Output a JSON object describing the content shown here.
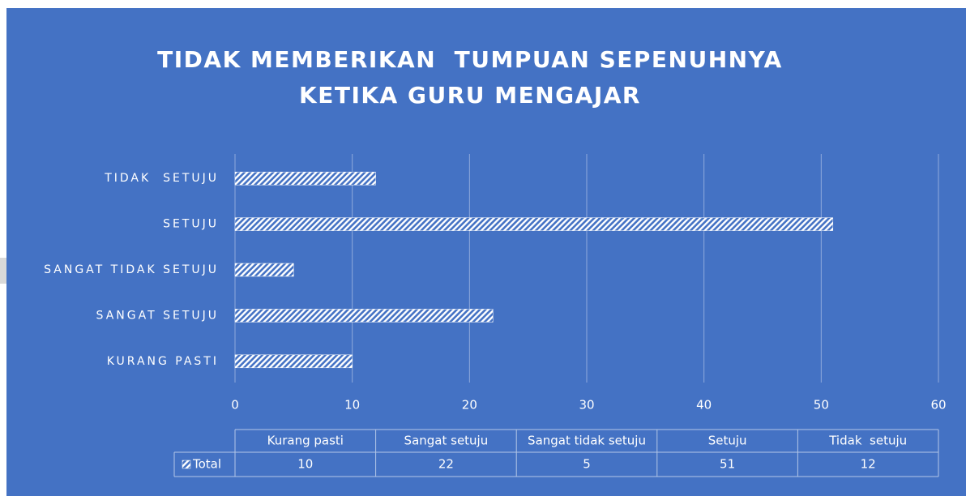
{
  "chart_data": {
    "type": "bar",
    "orientation": "horizontal",
    "title": "TIDAK MEMBERIKAN  TUMPUAN SEPENUHNYA KETIKA GURU MENGAJAR",
    "categories": [
      "Kurang pasti",
      "Sangat setuju",
      "Sangat tidak setuju",
      "Setuju",
      "Tidak  setuju"
    ],
    "series": [
      {
        "name": "Total",
        "color": "#ffffff",
        "values": [
          10,
          22,
          5,
          51,
          12
        ]
      }
    ],
    "xlim": [
      0,
      60
    ],
    "xticks": [
      0,
      10,
      20,
      30,
      40,
      50,
      60
    ],
    "grid": true,
    "data_table": true
  }
}
